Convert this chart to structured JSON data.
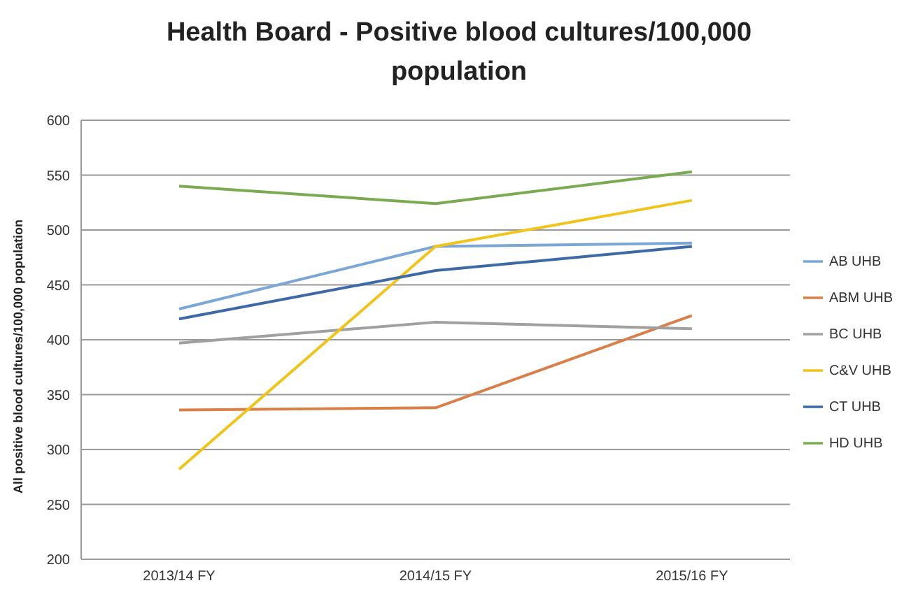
{
  "chart_data": {
    "type": "line",
    "title": "Health Board - Positive blood cultures/100,000 population",
    "ylabel": "All positive blood cultures/100,000 population",
    "categories": [
      "2013/14 FY",
      "2014/15 FY",
      "2015/16 FY"
    ],
    "series": [
      {
        "name": "AB UHB",
        "color": "#7ba7d6",
        "values": [
          428,
          485,
          488
        ]
      },
      {
        "name": "ABM UHB",
        "color": "#d9804a",
        "values": [
          336,
          338,
          422
        ]
      },
      {
        "name": "BC UHB",
        "color": "#a0a0a0",
        "values": [
          397,
          416,
          410
        ]
      },
      {
        "name": "C&V UHB",
        "color": "#f0c419",
        "values": [
          282,
          485,
          527
        ]
      },
      {
        "name": "CT UHB",
        "color": "#3d6aa6",
        "values": [
          419,
          463,
          485
        ]
      },
      {
        "name": "HD UHB",
        "color": "#7aab50",
        "values": [
          540,
          524,
          553
        ]
      }
    ],
    "ylim": [
      200,
      600
    ],
    "yticks": [
      200,
      250,
      300,
      350,
      400,
      450,
      500,
      550,
      600
    ],
    "grid": "y",
    "legend": "right",
    "marker": "none"
  }
}
